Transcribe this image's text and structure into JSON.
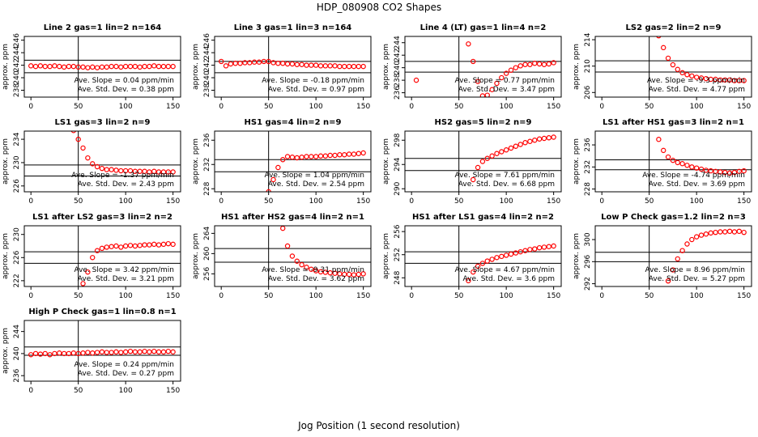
{
  "title": "HDP_080908  CO2 Shapes",
  "xlabel": "Jog Position (1 second resolution)",
  "chart_data": [
    {
      "type": "scatter",
      "title": "Line 2 gas=1 lin=2 n=164",
      "ylabel": "approx. ppm",
      "color": "#ff0000",
      "x": [
        0,
        5,
        10,
        15,
        20,
        25,
        30,
        35,
        40,
        45,
        50,
        55,
        60,
        65,
        70,
        75,
        80,
        85,
        90,
        95,
        100,
        105,
        110,
        115,
        120,
        125,
        130,
        135,
        140,
        145,
        150
      ],
      "values": [
        241.9,
        241.8,
        241.9,
        241.8,
        241.8,
        241.9,
        241.8,
        241.7,
        241.8,
        241.8,
        241.7,
        241.7,
        241.6,
        241.7,
        241.6,
        241.7,
        241.7,
        241.8,
        241.8,
        241.7,
        241.8,
        241.8,
        241.8,
        241.7,
        241.8,
        241.8,
        241.9,
        241.8,
        241.8,
        241.8,
        241.8
      ],
      "xlim": [
        -7,
        158
      ],
      "xticks": [
        0,
        50,
        100,
        150
      ],
      "ylim": [
        236.9,
        246.6
      ],
      "yticks": [
        238,
        240,
        242,
        244,
        246
      ],
      "hlines": [
        242.8,
        240.8
      ],
      "vline": 50,
      "annotations": [
        "Ave. Slope = 0.04 ppm/min",
        "Ave. Std. Dev. = 0.38 ppm"
      ]
    },
    {
      "type": "scatter",
      "title": "Line 3 gas=1 lin=3 n=164",
      "ylabel": "approx. ppm",
      "color": "#ff0000",
      "x": [
        0,
        5,
        10,
        15,
        20,
        25,
        30,
        35,
        40,
        45,
        50,
        55,
        60,
        65,
        70,
        75,
        80,
        85,
        90,
        95,
        100,
        105,
        110,
        115,
        120,
        125,
        130,
        135,
        140,
        145,
        150
      ],
      "values": [
        242.6,
        241.9,
        242.2,
        242.3,
        242.3,
        242.4,
        242.4,
        242.5,
        242.5,
        242.6,
        242.6,
        242.4,
        242.3,
        242.3,
        242.2,
        242.2,
        242.1,
        242.1,
        242.0,
        242.0,
        242.0,
        241.9,
        241.9,
        241.9,
        241.9,
        241.8,
        241.8,
        241.8,
        241.8,
        241.8,
        241.8
      ],
      "xlim": [
        -7,
        158
      ],
      "xticks": [
        0,
        50,
        100,
        150
      ],
      "ylim": [
        236.9,
        246.6
      ],
      "yticks": [
        238,
        240,
        242,
        244,
        246
      ],
      "hlines": [
        242.6,
        240.8
      ],
      "vline": 50,
      "annotations": [
        "Ave. Slope = -0.18 ppm/min",
        "Ave. Std. Dev. = 0.97 ppm"
      ]
    },
    {
      "type": "scatter",
      "title": "Line 4 (LT) gas=1 lin=4 n=2",
      "ylabel": "approx. ppm",
      "color": "#ff0000",
      "x": [
        5,
        55,
        60,
        65,
        70,
        75,
        80,
        85,
        90,
        95,
        100,
        105,
        110,
        115,
        120,
        125,
        130,
        135,
        140,
        145,
        150
      ],
      "values": [
        238,
        245.5,
        243.8,
        241,
        237.8,
        235.5,
        235.6,
        236.5,
        237.5,
        238.4,
        239.1,
        239.6,
        240,
        240.3,
        240.5,
        240.5,
        240.7,
        240.6,
        240.5,
        240.6,
        240.8
      ],
      "xlim": [
        -7,
        158
      ],
      "xticks": [
        0,
        50,
        100,
        150
      ],
      "ylim": [
        235.3,
        245
      ],
      "yticks": [
        236,
        238,
        240,
        242,
        244
      ],
      "hlines": [
        241,
        239.3
      ],
      "vline": 50,
      "annotations": [
        "Ave. Slope = 0.77 ppm/min",
        "Ave. Std. Dev. = 3.47 ppm"
      ]
    },
    {
      "type": "scatter",
      "title": "LS2 gas=2 lin=2 n=9",
      "ylabel": "approx. ppm",
      "color": "#ff0000",
      "x": [
        60,
        65,
        70,
        75,
        80,
        85,
        90,
        95,
        100,
        105,
        110,
        115,
        120,
        125,
        130,
        135,
        140,
        145,
        150
      ],
      "values": [
        214.6,
        212.8,
        211.2,
        210.2,
        209.5,
        209,
        208.7,
        208.5,
        208.3,
        208.2,
        208.1,
        208,
        208,
        207.9,
        207.9,
        207.9,
        207.8,
        207.8,
        207.8
      ],
      "xlim": [
        -7,
        158
      ],
      "xticks": [
        0,
        50,
        100,
        150
      ],
      "ylim": [
        205.3,
        214.5
      ],
      "yticks": [
        206,
        210,
        214
      ],
      "hlines": [
        210.8,
        209.1
      ],
      "vline": 50,
      "annotations": [
        "Ave. Slope = -9.3 ppm/min",
        "Ave. Std. Dev. = 4.77 ppm"
      ]
    },
    {
      "type": "scatter",
      "title": "LS1 gas=3 lin=2 n=9",
      "ylabel": "approx. ppm",
      "color": "#ff0000",
      "x": [
        45,
        50,
        55,
        60,
        65,
        70,
        75,
        80,
        85,
        90,
        95,
        100,
        105,
        110,
        115,
        120,
        125,
        130,
        135,
        140,
        145,
        150
      ],
      "values": [
        235.5,
        234,
        232.5,
        230.8,
        229.8,
        229.3,
        229,
        228.8,
        228.8,
        228.7,
        228.6,
        228.6,
        228.6,
        228.5,
        228.5,
        228.5,
        228.4,
        228.5,
        228.4,
        228.4,
        228.4,
        228.4
      ],
      "xlim": [
        -7,
        158
      ],
      "xticks": [
        0,
        50,
        100,
        150
      ],
      "ylim": [
        225,
        235.4
      ],
      "yticks": [
        226,
        230,
        234
      ],
      "hlines": [
        229.6,
        227.7
      ],
      "vline": 50,
      "annotations": [
        "Ave. Slope = -1.37 ppm/min",
        "Ave. Std. Dev. = 2.43 ppm"
      ]
    },
    {
      "type": "scatter",
      "title": "HS1 gas=4 lin=2 n=9",
      "ylabel": "approx. ppm",
      "color": "#ff0000",
      "x": [
        45,
        50,
        55,
        60,
        65,
        70,
        75,
        80,
        85,
        90,
        95,
        100,
        105,
        110,
        115,
        120,
        125,
        130,
        135,
        140,
        145,
        150
      ],
      "values": [
        226,
        227.5,
        229.5,
        231.5,
        232.8,
        233.3,
        233.2,
        233.1,
        233.2,
        233.3,
        233.3,
        233.3,
        233.4,
        233.4,
        233.5,
        233.5,
        233.6,
        233.6,
        233.7,
        233.7,
        233.8,
        233.9
      ],
      "xlim": [
        -7,
        158
      ],
      "xticks": [
        0,
        50,
        100,
        150
      ],
      "ylim": [
        227.5,
        237.5
      ],
      "yticks": [
        228,
        232,
        236
      ],
      "hlines": [
        232.8,
        230.8
      ],
      "vline": 50,
      "annotations": [
        "Ave. Slope = 1.04 ppm/min",
        "Ave. Std. Dev. = 2.54 ppm"
      ]
    },
    {
      "type": "scatter",
      "title": "HS2 gas=5 lin=2 n=9",
      "ylabel": "approx. ppm",
      "color": "#ff0000",
      "x": [
        60,
        65,
        70,
        75,
        80,
        85,
        90,
        95,
        100,
        105,
        110,
        115,
        120,
        125,
        130,
        135,
        140,
        145,
        150
      ],
      "values": [
        289,
        291.5,
        293.5,
        294.5,
        295,
        295.4,
        295.8,
        296.1,
        296.4,
        296.7,
        297,
        297.3,
        297.6,
        297.8,
        298,
        298.2,
        298.3,
        298.4,
        298.5
      ],
      "xlim": [
        -7,
        158
      ],
      "xticks": [
        0,
        50,
        100,
        150
      ],
      "ylim": [
        289.5,
        299.5
      ],
      "yticks": [
        290,
        294,
        298
      ],
      "hlines": [
        295,
        293
      ],
      "vline": 50,
      "annotations": [
        "Ave. Slope = 7.61 ppm/min",
        "Ave. Std. Dev. = 6.68 ppm"
      ]
    },
    {
      "type": "scatter",
      "title": "LS1 after HS1 gas=3 lin=2 n=1",
      "ylabel": "approx. ppm",
      "color": "#ff0000",
      "x": [
        60,
        65,
        70,
        75,
        80,
        85,
        90,
        95,
        100,
        105,
        110,
        115,
        120,
        125,
        130,
        135,
        140,
        145,
        150
      ],
      "values": [
        237,
        235,
        233.8,
        233.2,
        232.8,
        232.6,
        232.3,
        232,
        231.8,
        231.6,
        231.4,
        231.3,
        231.2,
        231.1,
        231,
        230.9,
        231,
        231.2,
        231.3
      ],
      "xlim": [
        -7,
        158
      ],
      "xticks": [
        0,
        50,
        100,
        150
      ],
      "ylim": [
        227.5,
        238.5
      ],
      "yticks": [
        228,
        232,
        236
      ],
      "hlines": [
        233.3,
        231.5
      ],
      "vline": 50,
      "annotations": [
        "Ave. Slope = -4.74 ppm/min",
        "Ave. Std. Dev. = 3.69 ppm"
      ]
    },
    {
      "type": "scatter",
      "title": "LS1 after LS2 gas=3 lin=2 n=2",
      "ylabel": "approx. ppm",
      "color": "#ff0000",
      "x": [
        55,
        60,
        65,
        70,
        75,
        80,
        85,
        90,
        95,
        100,
        105,
        110,
        115,
        120,
        125,
        130,
        135,
        140,
        145,
        150
      ],
      "values": [
        221.5,
        223.5,
        226,
        227.2,
        227.6,
        227.8,
        227.9,
        228,
        227.8,
        228,
        228.1,
        228,
        228.1,
        228.2,
        228.2,
        228.3,
        228.2,
        228.3,
        228.4,
        228.3
      ],
      "xlim": [
        -7,
        158
      ],
      "xticks": [
        0,
        50,
        100,
        150
      ],
      "ylim": [
        221,
        231.5
      ],
      "yticks": [
        222,
        226,
        230
      ],
      "hlines": [
        227,
        225
      ],
      "vline": 50,
      "annotations": [
        "Ave. Slope = 3.42 ppm/min",
        "Ave. Std. Dev. = 3.21 ppm"
      ]
    },
    {
      "type": "scatter",
      "title": "HS1 after HS2 gas=4 lin=2 n=1",
      "ylabel": "approx. ppm",
      "color": "#ff0000",
      "x": [
        65,
        70,
        75,
        80,
        85,
        90,
        95,
        100,
        105,
        110,
        115,
        120,
        125,
        130,
        135,
        140,
        145,
        150
      ],
      "values": [
        265,
        261.5,
        259.5,
        258.5,
        257.8,
        257.3,
        256.9,
        256.6,
        256.4,
        256.3,
        256.2,
        256.1,
        256,
        255.9,
        255.9,
        255.8,
        255.9,
        256
      ],
      "xlim": [
        -7,
        158
      ],
      "xticks": [
        0,
        50,
        100,
        150
      ],
      "ylim": [
        253.5,
        265.5
      ],
      "yticks": [
        256,
        260,
        264
      ],
      "hlines": [
        261,
        258.3
      ],
      "vline": 50,
      "annotations": [
        "Ave. Slope = -9.31 ppm/min",
        "Ave. Std. Dev. = 3.62 ppm"
      ]
    },
    {
      "type": "scatter",
      "title": "HS1 after LS1 gas=4 lin=2 n=2",
      "ylabel": "approx. ppm",
      "color": "#ff0000",
      "x": [
        55,
        60,
        65,
        70,
        75,
        80,
        85,
        90,
        95,
        100,
        105,
        110,
        115,
        120,
        125,
        130,
        135,
        140,
        145,
        150
      ],
      "values": [
        246,
        247.5,
        249,
        250,
        250.5,
        250.9,
        251.2,
        251.5,
        251.7,
        251.9,
        252.1,
        252.3,
        252.5,
        252.7,
        252.9,
        253,
        253.2,
        253.3,
        253.4,
        253.5
      ],
      "xlim": [
        -7,
        158
      ],
      "xticks": [
        0,
        50,
        100,
        150
      ],
      "ylim": [
        246.5,
        257
      ],
      "yticks": [
        248,
        252,
        256
      ],
      "hlines": [
        252.5,
        250.5
      ],
      "vline": 50,
      "annotations": [
        "Ave. Slope = 4.67 ppm/min",
        "Ave. Std. Dev. = 3.6 ppm"
      ]
    },
    {
      "type": "scatter",
      "title": "Low P Check gas=1.2 lin=2 n=3",
      "ylabel": "approx. ppm",
      "color": "#ff0000",
      "x": [
        65,
        70,
        75,
        80,
        85,
        90,
        95,
        100,
        105,
        110,
        115,
        120,
        125,
        130,
        135,
        140,
        145,
        150
      ],
      "values": [
        290,
        292.5,
        294.5,
        296.5,
        298,
        299.2,
        300,
        300.5,
        300.8,
        301,
        301.2,
        301.3,
        301.4,
        301.4,
        301.5,
        301.4,
        301.5,
        301.3
      ],
      "xlim": [
        -7,
        158
      ],
      "xticks": [
        0,
        50,
        100,
        150
      ],
      "ylim": [
        291.5,
        302.5
      ],
      "yticks": [
        292,
        296,
        300
      ],
      "hlines": [
        297.7,
        296
      ],
      "vline": 50,
      "annotations": [
        "Ave. Slope = 8.96 ppm/min",
        "Ave. Std. Dev. = 5.27 ppm"
      ]
    },
    {
      "type": "scatter",
      "title": "High P Check gas=1 lin=0.8 n=1",
      "ylabel": "approx. ppm",
      "color": "#ff0000",
      "x": [
        0,
        5,
        10,
        15,
        20,
        25,
        30,
        35,
        40,
        45,
        50,
        55,
        60,
        65,
        70,
        75,
        80,
        85,
        90,
        95,
        100,
        105,
        110,
        115,
        120,
        125,
        130,
        135,
        140,
        145,
        150
      ],
      "values": [
        239.8,
        240,
        239.9,
        240,
        239.8,
        240,
        240.1,
        240,
        240,
        240.1,
        240,
        240.1,
        240.2,
        240.1,
        240.2,
        240.3,
        240.2,
        240.2,
        240.3,
        240.2,
        240.3,
        240.4,
        240.3,
        240.3,
        240.4,
        240.3,
        240.4,
        240.3,
        240.3,
        240.4,
        240.3
      ],
      "xlim": [
        -7,
        158
      ],
      "xticks": [
        0,
        50,
        100,
        150
      ],
      "ylim": [
        235,
        246
      ],
      "yticks": [
        236,
        240,
        244
      ],
      "hlines": [
        241.2,
        239.7
      ],
      "vline": 50,
      "annotations": [
        "Ave. Slope = 0.24 ppm/min",
        "Ave. Std. Dev. = 0.27 ppm"
      ]
    }
  ]
}
